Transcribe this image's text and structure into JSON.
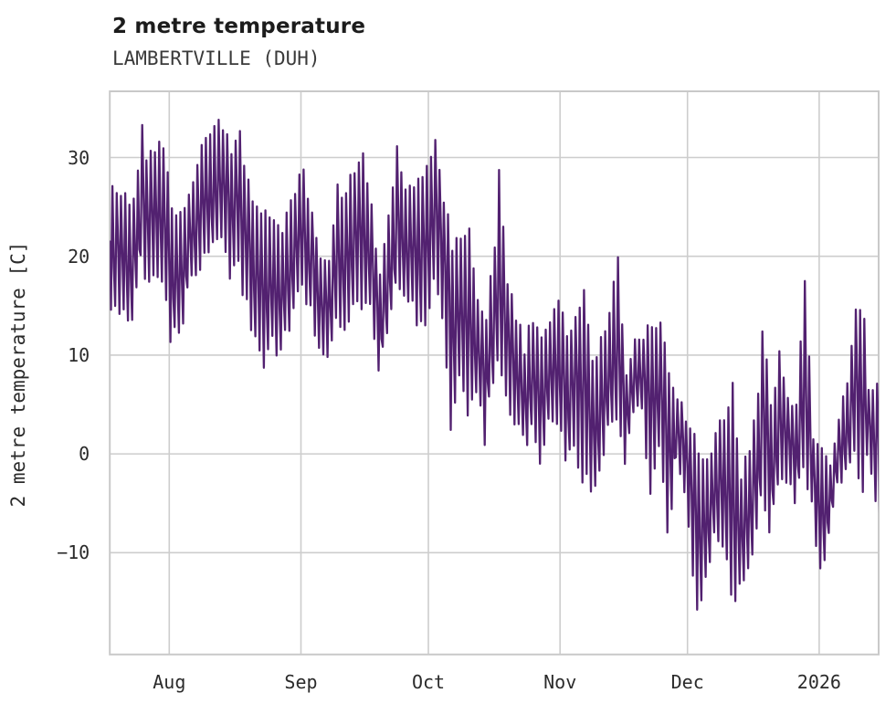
{
  "header": {
    "title": "2 metre temperature",
    "subtitle": "LAMBERTVILLE (DUH)"
  },
  "colors": {
    "line": "#522170",
    "grid": "#cdcdcd",
    "spine": "#c9c9c9",
    "title_text": "#1c1c1c",
    "tick_text": "#2b2b2b",
    "background": "#ffffff"
  },
  "chart_data": {
    "type": "line",
    "title": "2 metre temperature",
    "subtitle": "LAMBERTVILLE (DUH)",
    "xlabel": "",
    "ylabel": "2 metre temperature [C]",
    "x_range_note": "hourly 2 m temperature from 18 Jul 2025 to 15 Jan 2026, day 0 = 18 Jul",
    "x_total_days": 181,
    "ylim": [
      -20.3,
      36.7
    ],
    "grid": true,
    "legend": "none",
    "yticks": [
      {
        "label": "30",
        "value": 30
      },
      {
        "label": "20",
        "value": 20
      },
      {
        "label": "10",
        "value": 10
      },
      {
        "label": "0",
        "value": 0
      },
      {
        "label": "−10",
        "value": -10
      }
    ],
    "xticks": [
      {
        "label": "Aug",
        "day": 14
      },
      {
        "label": "Sep",
        "day": 45
      },
      {
        "label": "Oct",
        "day": 75
      },
      {
        "label": "Nov",
        "day": 106
      },
      {
        "label": "Dec",
        "day": 136
      },
      {
        "label": "2026",
        "day": 167
      }
    ],
    "series": [
      {
        "name": "2 metre temperature",
        "color": "#522170",
        "units": "C",
        "envelope_daily_hi_lo": [
          [
            0,
            27.5,
            15.5
          ],
          [
            2,
            26.2,
            15.0
          ],
          [
            4,
            25.0,
            12.7
          ],
          [
            6,
            28.0,
            16.0
          ],
          [
            7,
            33.8,
            20.0
          ],
          [
            8,
            29.0,
            17.0
          ],
          [
            10,
            31.3,
            18.0
          ],
          [
            12,
            30.8,
            17.0
          ],
          [
            14,
            25.5,
            12.0
          ],
          [
            16,
            24.0,
            12.5
          ],
          [
            18,
            26.5,
            16.0
          ],
          [
            20,
            29.5,
            18.5
          ],
          [
            22,
            31.5,
            20.5
          ],
          [
            24,
            33.8,
            22.0
          ],
          [
            26,
            33.2,
            21.5
          ],
          [
            28,
            30.5,
            18.5
          ],
          [
            30,
            32.8,
            19.0
          ],
          [
            32,
            27.0,
            15.0
          ],
          [
            34,
            24.5,
            11.0
          ],
          [
            36,
            24.8,
            9.8
          ],
          [
            38,
            23.5,
            11.5
          ],
          [
            40,
            22.5,
            9.6
          ],
          [
            42,
            25.0,
            13.5
          ],
          [
            44,
            27.5,
            16.0
          ],
          [
            45,
            29.1,
            17.0
          ],
          [
            47,
            24.0,
            14.0
          ],
          [
            49,
            19.5,
            10.8
          ],
          [
            51,
            19.0,
            9.3
          ],
          [
            53,
            26.5,
            13.5
          ],
          [
            55,
            26.8,
            12.0
          ],
          [
            57,
            28.3,
            15.0
          ],
          [
            59,
            31.0,
            15.5
          ],
          [
            61,
            24.5,
            14.8
          ],
          [
            63,
            17.5,
            7.6
          ],
          [
            65,
            24.5,
            13.0
          ],
          [
            67,
            30.7,
            17.0
          ],
          [
            69,
            27.0,
            15.5
          ],
          [
            71,
            26.5,
            14.5
          ],
          [
            73,
            28.0,
            13.0
          ],
          [
            75,
            30.5,
            15.0
          ],
          [
            76,
            31.5,
            17.5
          ],
          [
            78,
            26.0,
            14.5
          ],
          [
            80,
            21.0,
            1.8
          ],
          [
            82,
            21.5,
            7.0
          ],
          [
            84,
            22.4,
            4.0
          ],
          [
            86,
            16.0,
            7.0
          ],
          [
            88,
            14.0,
            1.5
          ],
          [
            90,
            21.0,
            8.0
          ],
          [
            91,
            28.2,
            10.0
          ],
          [
            93,
            17.5,
            6.5
          ],
          [
            95,
            14.0,
            3.4
          ],
          [
            97,
            10.8,
            1.3
          ],
          [
            99,
            13.9,
            2.5
          ],
          [
            101,
            12.5,
            -1.7
          ],
          [
            103,
            13.5,
            2.5
          ],
          [
            105,
            16.0,
            4.0
          ],
          [
            107,
            12.1,
            -1.5
          ],
          [
            109,
            13.6,
            0.5
          ],
          [
            111,
            16.5,
            -2.0
          ],
          [
            113,
            9.0,
            -3.7
          ],
          [
            115,
            11.8,
            -1.2
          ],
          [
            117,
            14.5,
            3.0
          ],
          [
            119,
            19.3,
            4.0
          ],
          [
            121,
            8.0,
            -0.5
          ],
          [
            123,
            11.5,
            3.5
          ],
          [
            125,
            12.0,
            4.5
          ],
          [
            127,
            12.5,
            -4.7
          ],
          [
            129,
            12.8,
            1.0
          ],
          [
            131,
            8.5,
            -8.2
          ],
          [
            133,
            6.0,
            -1.0
          ],
          [
            135,
            4.0,
            -4.0
          ],
          [
            136,
            2.0,
            -7.0
          ],
          [
            138,
            0.5,
            -16.7
          ],
          [
            140,
            -1.0,
            -12.0
          ],
          [
            142,
            1.5,
            -8.0
          ],
          [
            144,
            4.0,
            -9.2
          ],
          [
            146,
            6.4,
            -13.9
          ],
          [
            148,
            -2.0,
            -14.0
          ],
          [
            150,
            1.0,
            -11.2
          ],
          [
            152,
            6.0,
            -7.7
          ],
          [
            153,
            13.1,
            -5.0
          ],
          [
            155,
            4.5,
            -7.4
          ],
          [
            157,
            10.1,
            -3.0
          ],
          [
            159,
            5.0,
            -2.5
          ],
          [
            161,
            4.8,
            -5.2
          ],
          [
            163,
            17.1,
            -1.0
          ],
          [
            165,
            2.0,
            -5.6
          ],
          [
            167,
            0.5,
            -12.6
          ],
          [
            169,
            -1.0,
            -8.0
          ],
          [
            171,
            4.0,
            -3.3
          ],
          [
            173,
            7.3,
            -2.1
          ],
          [
            175,
            15.4,
            0.0
          ],
          [
            177,
            13.0,
            -3.3
          ],
          [
            178,
            6.9,
            -1.0
          ],
          [
            180,
            7.2,
            -4.0
          ],
          [
            181,
            7.0,
            -6.5
          ]
        ]
      }
    ]
  }
}
